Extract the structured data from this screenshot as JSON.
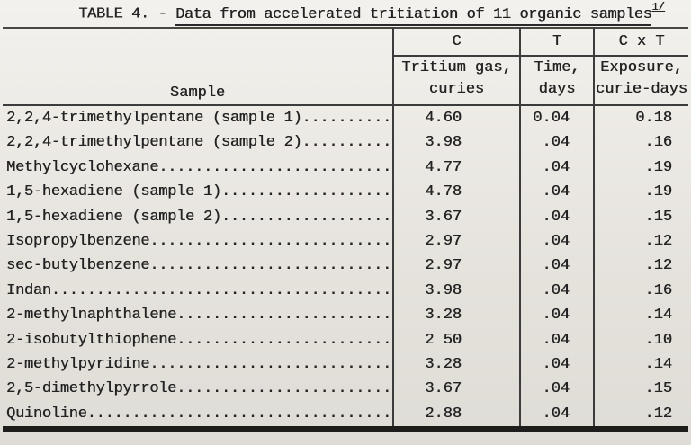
{
  "colors": {
    "paper": "#edeae4",
    "ink": "#232323",
    "rule": "#3c3c3c"
  },
  "title": {
    "prefix": "TABLE 4. - ",
    "underlined_text": "Data from accelerated tritiation of 11 organic samples",
    "footnote_mark": "1/"
  },
  "table": {
    "sample_header": "Sample",
    "columns": [
      {
        "symbol": "C",
        "desc_line1": "Tritium gas,",
        "desc_line2": "curies"
      },
      {
        "symbol": "T",
        "desc_line1": "Time,",
        "desc_line2": "days"
      },
      {
        "symbol": "C x T",
        "desc_line1": "Exposure,",
        "desc_line2": "curie-days"
      }
    ],
    "rows": [
      {
        "sample": "2,2,4-trimethylpentane (sample 1)",
        "leader": "..........",
        "tritium_gas_curies": "4.60",
        "time_days": "0.04",
        "exposure_curie_days": "0.18"
      },
      {
        "sample": "2,2,4-trimethylpentane (sample 2)",
        "leader": "..........",
        "tritium_gas_curies": "3.98",
        "time_days": ".04",
        "exposure_curie_days": ".16"
      },
      {
        "sample": "Methylcyclohexane",
        "leader": "..........................",
        "tritium_gas_curies": "4.77",
        "time_days": ".04",
        "exposure_curie_days": ".19"
      },
      {
        "sample": "1,5-hexadiene (sample 1)",
        "leader": "...................",
        "tritium_gas_curies": "4.78",
        "time_days": ".04",
        "exposure_curie_days": ".19"
      },
      {
        "sample": "1,5-hexadiene (sample 2)",
        "leader": "...................",
        "tritium_gas_curies": "3.67",
        "time_days": ".04",
        "exposure_curie_days": ".15"
      },
      {
        "sample": "Isopropylbenzene",
        "leader": "...........................",
        "tritium_gas_curies": "2.97",
        "time_days": ".04",
        "exposure_curie_days": ".12"
      },
      {
        "sample": "sec-butylbenzene",
        "leader": "...........................",
        "tritium_gas_curies": "2.97",
        "time_days": ".04",
        "exposure_curie_days": ".12"
      },
      {
        "sample": "Indan",
        "leader": "......................................",
        "tritium_gas_curies": "3.98",
        "time_days": ".04",
        "exposure_curie_days": ".16"
      },
      {
        "sample": "2-methylnaphthalene",
        "leader": "........................",
        "tritium_gas_curies": "3.28",
        "time_days": ".04",
        "exposure_curie_days": ".14"
      },
      {
        "sample": "2-isobutylthiophene",
        "leader": "........................",
        "tritium_gas_curies": "2 50",
        "time_days": ".04",
        "exposure_curie_days": ".10"
      },
      {
        "sample": "2-methylpyridine",
        "leader": "...........................",
        "tritium_gas_curies": "3.28",
        "time_days": ".04",
        "exposure_curie_days": ".14"
      },
      {
        "sample": "2,5-dimethylpyrrole",
        "leader": "........................",
        "tritium_gas_curies": "3.67",
        "time_days": ".04",
        "exposure_curie_days": ".15"
      },
      {
        "sample": "Quinoline",
        "leader": "..................................",
        "tritium_gas_curies": "2.88",
        "time_days": ".04",
        "exposure_curie_days": ".12"
      }
    ]
  }
}
